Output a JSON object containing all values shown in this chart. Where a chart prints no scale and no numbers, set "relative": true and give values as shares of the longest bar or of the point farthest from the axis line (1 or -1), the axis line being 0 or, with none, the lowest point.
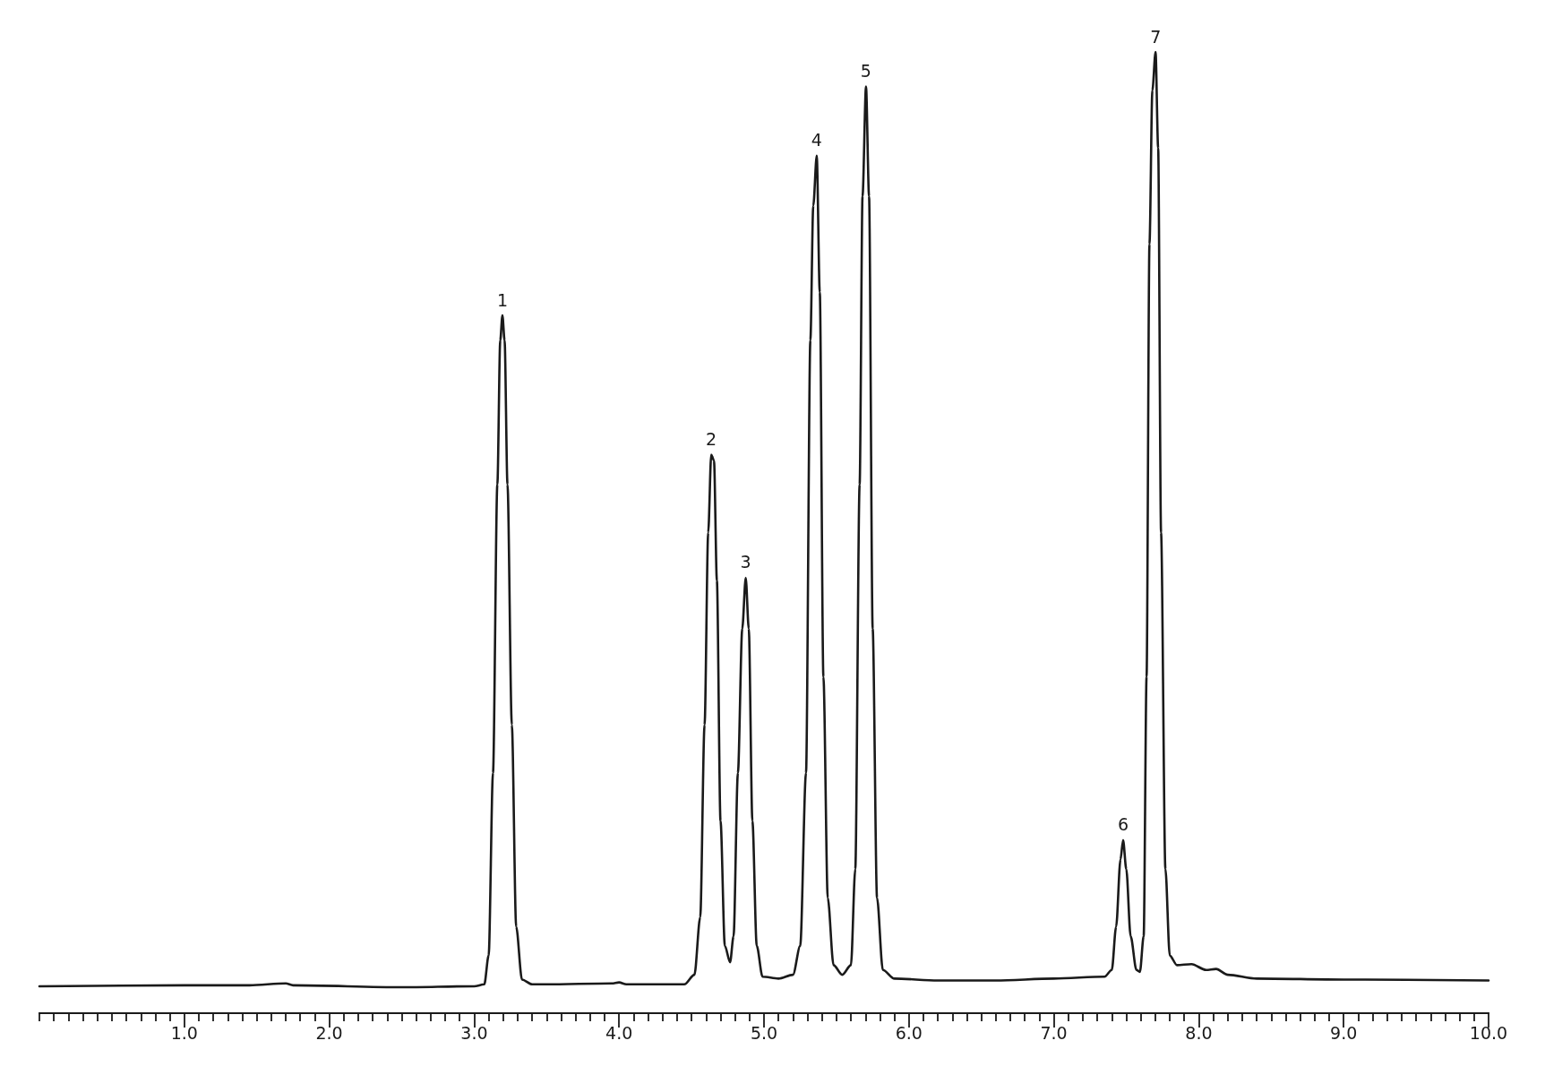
{
  "chart_data": {
    "type": "line",
    "relative": true,
    "color": "#1a1a1a",
    "grid": false,
    "marker": "none",
    "line_style": "solid",
    "x": [
      0,
      1.0,
      1.45,
      1.7,
      1.75,
      2.5,
      3.0,
      3.07,
      3.1,
      3.13,
      3.16,
      3.18,
      3.195,
      3.21,
      3.23,
      3.26,
      3.29,
      3.33,
      3.4,
      3.5,
      3.95,
      4.0,
      4.05,
      4.4,
      4.45,
      4.52,
      4.56,
      4.59,
      4.615,
      4.636,
      4.655,
      4.675,
      4.7,
      4.73,
      4.766,
      4.79,
      4.82,
      4.85,
      4.874,
      4.895,
      4.92,
      4.95,
      4.99,
      5.1,
      5.2,
      5.25,
      5.29,
      5.32,
      5.34,
      5.364,
      5.385,
      5.41,
      5.44,
      5.48,
      5.54,
      5.6,
      5.63,
      5.66,
      5.68,
      5.704,
      5.725,
      5.75,
      5.78,
      5.82,
      5.9,
      6.2,
      6.6,
      7.0,
      7.35,
      7.4,
      7.43,
      7.46,
      7.478,
      7.5,
      7.53,
      7.57,
      7.594,
      7.62,
      7.64,
      7.66,
      7.68,
      7.702,
      7.72,
      7.74,
      7.77,
      7.8,
      7.85,
      7.95,
      8.05,
      8.12,
      8.2,
      8.4,
      9.0,
      10.0
    ],
    "values": [
      0.028,
      0.029,
      0.029,
      0.031,
      0.029,
      0.027,
      0.028,
      0.03,
      0.06,
      0.25,
      0.55,
      0.7,
      0.726,
      0.7,
      0.55,
      0.3,
      0.09,
      0.035,
      0.03,
      0.03,
      0.031,
      0.032,
      0.03,
      0.03,
      0.03,
      0.04,
      0.1,
      0.3,
      0.5,
      0.581,
      0.575,
      0.45,
      0.2,
      0.07,
      0.053,
      0.08,
      0.25,
      0.4,
      0.453,
      0.4,
      0.2,
      0.07,
      0.038,
      0.036,
      0.04,
      0.07,
      0.25,
      0.7,
      0.84,
      0.892,
      0.75,
      0.35,
      0.12,
      0.05,
      0.04,
      0.05,
      0.15,
      0.55,
      0.85,
      0.964,
      0.85,
      0.4,
      0.12,
      0.045,
      0.036,
      0.034,
      0.034,
      0.036,
      0.038,
      0.045,
      0.09,
      0.16,
      0.18,
      0.15,
      0.08,
      0.045,
      0.043,
      0.08,
      0.35,
      0.8,
      0.96,
      1.0,
      0.9,
      0.5,
      0.15,
      0.06,
      0.05,
      0.051,
      0.045,
      0.046,
      0.04,
      0.036,
      0.035,
      0.034
    ],
    "xlim": [
      0,
      10
    ],
    "xticks": [
      {
        "value": 0,
        "label": null
      },
      {
        "value": 0.1,
        "label": null
      },
      {
        "value": 0.2,
        "label": null
      },
      {
        "value": 0.3,
        "label": null
      },
      {
        "value": 0.4,
        "label": null
      },
      {
        "value": 0.5,
        "label": null
      },
      {
        "value": 0.6,
        "label": null
      },
      {
        "value": 0.7,
        "label": null
      },
      {
        "value": 0.8,
        "label": null
      },
      {
        "value": 0.9,
        "label": null
      },
      {
        "value": 1,
        "label": "1.0"
      },
      {
        "value": 1.1,
        "label": null
      },
      {
        "value": 1.2,
        "label": null
      },
      {
        "value": 1.3,
        "label": null
      },
      {
        "value": 1.4,
        "label": null
      },
      {
        "value": 1.5,
        "label": null
      },
      {
        "value": 1.6,
        "label": null
      },
      {
        "value": 1.7,
        "label": null
      },
      {
        "value": 1.8,
        "label": null
      },
      {
        "value": 1.9,
        "label": null
      },
      {
        "value": 2,
        "label": "2.0"
      },
      {
        "value": 2.1,
        "label": null
      },
      {
        "value": 2.2,
        "label": null
      },
      {
        "value": 2.3,
        "label": null
      },
      {
        "value": 2.4,
        "label": null
      },
      {
        "value": 2.5,
        "label": null
      },
      {
        "value": 2.6,
        "label": null
      },
      {
        "value": 2.7,
        "label": null
      },
      {
        "value": 2.8,
        "label": null
      },
      {
        "value": 2.9,
        "label": null
      },
      {
        "value": 3,
        "label": "3.0"
      },
      {
        "value": 3.1,
        "label": null
      },
      {
        "value": 3.2,
        "label": null
      },
      {
        "value": 3.3,
        "label": null
      },
      {
        "value": 3.4,
        "label": null
      },
      {
        "value": 3.5,
        "label": null
      },
      {
        "value": 3.6,
        "label": null
      },
      {
        "value": 3.7,
        "label": null
      },
      {
        "value": 3.8,
        "label": null
      },
      {
        "value": 3.9,
        "label": null
      },
      {
        "value": 4,
        "label": "4.0"
      },
      {
        "value": 4.1,
        "label": null
      },
      {
        "value": 4.2,
        "label": null
      },
      {
        "value": 4.3,
        "label": null
      },
      {
        "value": 4.4,
        "label": null
      },
      {
        "value": 4.5,
        "label": null
      },
      {
        "value": 4.6,
        "label": null
      },
      {
        "value": 4.7,
        "label": null
      },
      {
        "value": 4.8,
        "label": null
      },
      {
        "value": 4.9,
        "label": null
      },
      {
        "value": 5,
        "label": "5.0"
      },
      {
        "value": 5.1,
        "label": null
      },
      {
        "value": 5.2,
        "label": null
      },
      {
        "value": 5.3,
        "label": null
      },
      {
        "value": 5.4,
        "label": null
      },
      {
        "value": 5.5,
        "label": null
      },
      {
        "value": 5.6,
        "label": null
      },
      {
        "value": 5.7,
        "label": null
      },
      {
        "value": 5.8,
        "label": null
      },
      {
        "value": 5.9,
        "label": null
      },
      {
        "value": 6,
        "label": "6.0"
      },
      {
        "value": 6.1,
        "label": null
      },
      {
        "value": 6.2,
        "label": null
      },
      {
        "value": 6.3,
        "label": null
      },
      {
        "value": 6.4,
        "label": null
      },
      {
        "value": 6.5,
        "label": null
      },
      {
        "value": 6.6,
        "label": null
      },
      {
        "value": 6.7,
        "label": null
      },
      {
        "value": 6.8,
        "label": null
      },
      {
        "value": 6.9,
        "label": null
      },
      {
        "value": 7,
        "label": "7.0"
      },
      {
        "value": 7.1,
        "label": null
      },
      {
        "value": 7.2,
        "label": null
      },
      {
        "value": 7.3,
        "label": null
      },
      {
        "value": 7.4,
        "label": null
      },
      {
        "value": 7.5,
        "label": null
      },
      {
        "value": 7.6,
        "label": null
      },
      {
        "value": 7.7,
        "label": null
      },
      {
        "value": 7.8,
        "label": null
      },
      {
        "value": 7.9,
        "label": null
      },
      {
        "value": 8,
        "label": "8.0"
      },
      {
        "value": 8.1,
        "label": null
      },
      {
        "value": 8.2,
        "label": null
      },
      {
        "value": 8.3,
        "label": null
      },
      {
        "value": 8.4,
        "label": null
      },
      {
        "value": 8.5,
        "label": null
      },
      {
        "value": 8.6,
        "label": null
      },
      {
        "value": 8.7,
        "label": null
      },
      {
        "value": 8.8,
        "label": null
      },
      {
        "value": 8.9,
        "label": null
      },
      {
        "value": 9,
        "label": "9.0"
      },
      {
        "value": 9.1,
        "label": null
      },
      {
        "value": 9.2,
        "label": null
      },
      {
        "value": 9.3,
        "label": null
      },
      {
        "value": 9.4,
        "label": null
      },
      {
        "value": 9.5,
        "label": null
      },
      {
        "value": 9.6,
        "label": null
      },
      {
        "value": 9.7,
        "label": null
      },
      {
        "value": 9.8,
        "label": null
      },
      {
        "value": 9.9,
        "label": null
      },
      {
        "value": 10,
        "label": "10.0"
      }
    ],
    "annotations": [
      {
        "text": "1",
        "x": 3.195,
        "y": 0.726
      },
      {
        "text": "2",
        "x": 4.636,
        "y": 0.581
      },
      {
        "text": "3",
        "x": 4.874,
        "y": 0.453
      },
      {
        "text": "4",
        "x": 5.364,
        "y": 0.892
      },
      {
        "text": "5",
        "x": 5.704,
        "y": 0.964
      },
      {
        "text": "6",
        "x": 7.478,
        "y": 0.18
      },
      {
        "text": "7",
        "x": 7.702,
        "y": 1.0
      }
    ]
  }
}
